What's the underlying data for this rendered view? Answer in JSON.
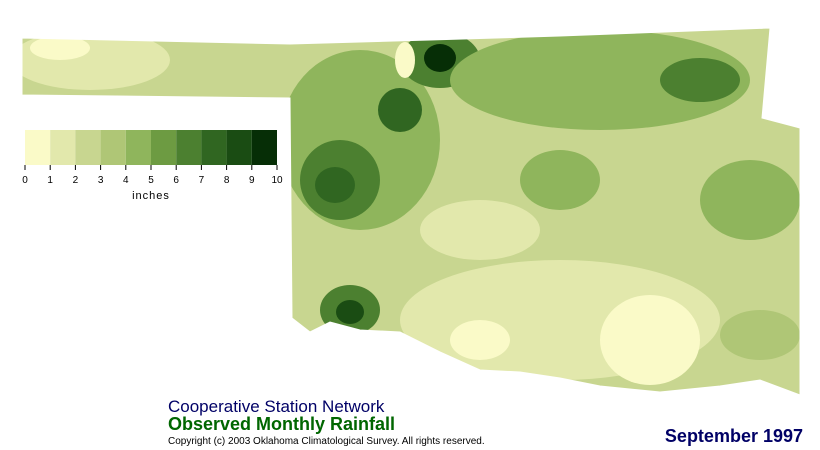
{
  "legend": {
    "ticks": [
      0,
      1,
      2,
      3,
      4,
      5,
      6,
      7,
      8,
      9,
      10
    ],
    "unit": "inches",
    "colors": [
      "#fafac8",
      "#e2e8ac",
      "#c8d690",
      "#afc676",
      "#8fb55c",
      "#6d9b42",
      "#4c8030",
      "#306621",
      "#1a4c13",
      "#062e06"
    ]
  },
  "header": {
    "network": "Cooperative Station Network",
    "title": "Observed Monthly Rainfall",
    "copyright": "Copyright (c) 2003 Oklahoma Climatological Survey. All rights reserved.",
    "date": "September 1997"
  }
}
